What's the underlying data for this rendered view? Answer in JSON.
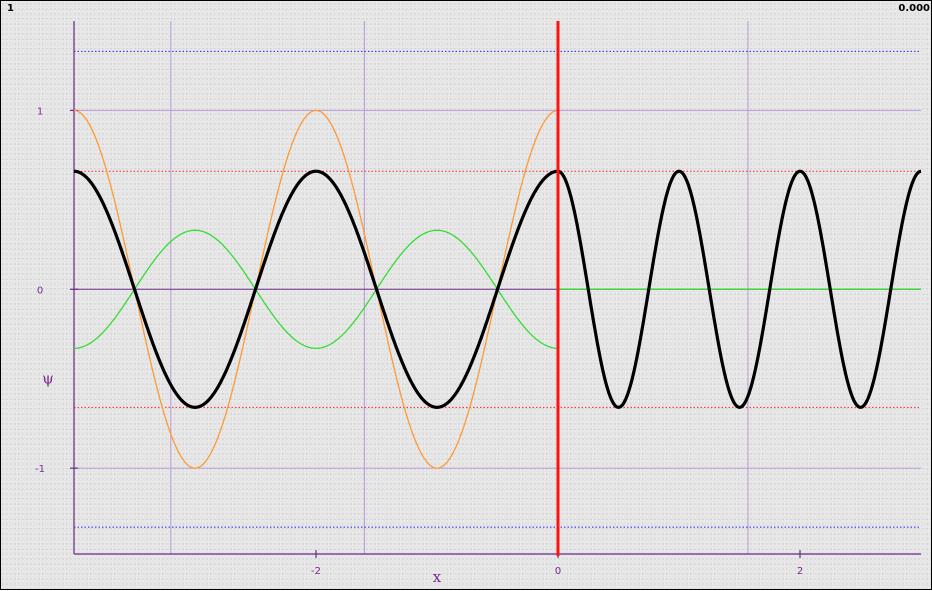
{
  "corner_labels": {
    "left": "1",
    "right": "0.000"
  },
  "chart_data": {
    "type": "line",
    "title": "",
    "xlabel": "x",
    "ylabel": "ψ",
    "xlim": [
      -4.0,
      3.0
    ],
    "ylim": [
      -1.48,
      1.5
    ],
    "x_ticks": [
      {
        "value": -2,
        "label": "-2"
      },
      {
        "value": 0,
        "label": "0"
      },
      {
        "value": 2,
        "label": "2"
      }
    ],
    "y_ticks": [
      {
        "value": 1,
        "label": "1"
      },
      {
        "value": 0,
        "label": "0"
      },
      {
        "value": -1,
        "label": "-1"
      }
    ],
    "gridlines": {
      "vertical": [
        -3.2,
        -1.6,
        0,
        1.57
      ],
      "horizontal": [
        1,
        0,
        -1
      ]
    },
    "reference_lines": [
      {
        "y": 1.33,
        "color": "#2222ff",
        "style": "dotted"
      },
      {
        "y": 0.66,
        "color": "#ff2222",
        "style": "dotted"
      },
      {
        "y": -0.66,
        "color": "#ff2222",
        "style": "dotted"
      },
      {
        "y": -1.33,
        "color": "#2222ff",
        "style": "dotted"
      }
    ],
    "barrier": {
      "x": 0,
      "color": "#ff1111"
    },
    "series": [
      {
        "color": "#ff9933",
        "width": 1.3,
        "x_range": [
          -4.0,
          0
        ],
        "amplitude": 1.0,
        "wavelength": 2.0,
        "phase_x0": -4.0,
        "function": "cos"
      },
      {
        "color": "#33dd33",
        "width": 1.3,
        "x_range": [
          -4.0,
          0
        ],
        "amplitude": -0.33,
        "wavelength": 2.0,
        "phase_x0": -4.0,
        "function": "cos"
      },
      {
        "color": "#33dd33",
        "width": 1.3,
        "x_range": [
          0,
          3.0
        ],
        "amplitude": 0.0,
        "wavelength": 1.0,
        "phase_x0": 0,
        "function": "cos"
      },
      {
        "color": "#000000",
        "width": 3.2,
        "x_range": [
          -4.0,
          0
        ],
        "amplitude": 0.66,
        "wavelength": 2.0,
        "phase_x0": -4.0,
        "function": "cos"
      },
      {
        "color": "#000000",
        "width": 3.2,
        "x_range": [
          0,
          3.0
        ],
        "amplitude": 0.66,
        "wavelength": 1.0,
        "phase_x0": 0,
        "function": "cos"
      }
    ],
    "colors": {
      "grid": "#b99ad9",
      "axis": "#6b2a8a",
      "label": "#7a2a8f"
    }
  }
}
